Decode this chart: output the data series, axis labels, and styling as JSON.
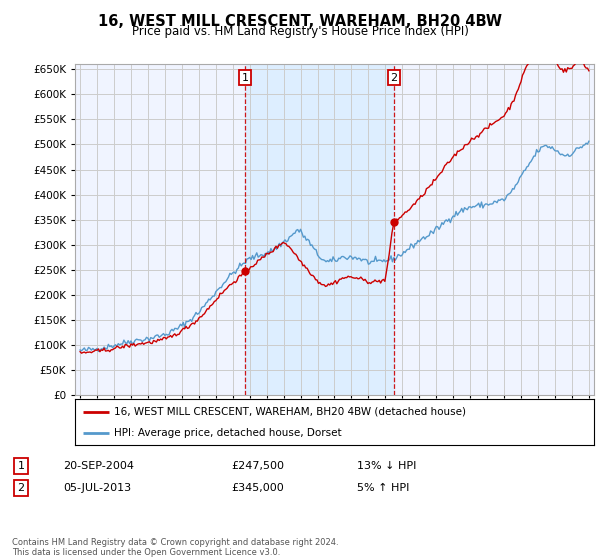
{
  "title": "16, WEST MILL CRESCENT, WAREHAM, BH20 4BW",
  "subtitle": "Price paid vs. HM Land Registry's House Price Index (HPI)",
  "legend_line1": "16, WEST MILL CRESCENT, WAREHAM, BH20 4BW (detached house)",
  "legend_line2": "HPI: Average price, detached house, Dorset",
  "annotation1_date": "20-SEP-2004",
  "annotation1_price": "£247,500",
  "annotation1_hpi": "13% ↓ HPI",
  "annotation2_date": "05-JUL-2013",
  "annotation2_price": "£345,000",
  "annotation2_hpi": "5% ↑ HPI",
  "footer": "Contains HM Land Registry data © Crown copyright and database right 2024.\nThis data is licensed under the Open Government Licence v3.0.",
  "red_color": "#cc0000",
  "blue_color": "#5599cc",
  "shade_color": "#ddeeff",
  "grid_color": "#cccccc",
  "bg_color": "#ffffff",
  "plot_bg_color": "#f0f4ff",
  "ylim": [
    0,
    660000
  ],
  "yticks": [
    0,
    50000,
    100000,
    150000,
    200000,
    250000,
    300000,
    350000,
    400000,
    450000,
    500000,
    550000,
    600000,
    650000
  ],
  "xlim_start": 1994.7,
  "xlim_end": 2025.3,
  "sale1_x": 2004.72,
  "sale1_y": 247500,
  "sale2_x": 2013.5,
  "sale2_y": 345000
}
